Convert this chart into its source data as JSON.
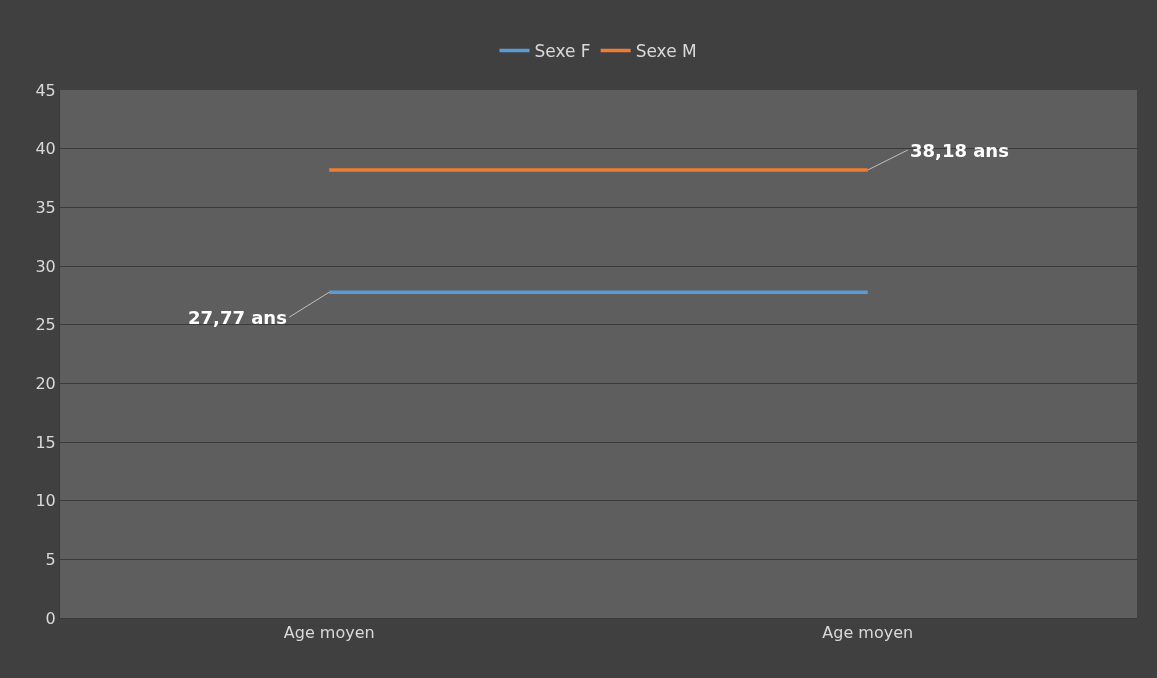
{
  "chart_data": {
    "type": "line",
    "categories": [
      "Age moyen",
      "Age moyen"
    ],
    "series": [
      {
        "name": "Sexe F",
        "color": "#5b9bd5",
        "values": [
          27.77,
          27.77
        ],
        "value_labels": [
          "27,77 ans",
          null
        ]
      },
      {
        "name": "Sexe M",
        "color": "#ed7d31",
        "values": [
          38.18,
          38.18
        ],
        "value_labels": [
          null,
          "38,18 ans"
        ]
      }
    ],
    "ylim": [
      0,
      45
    ],
    "yticks": [
      0,
      5,
      10,
      15,
      20,
      25,
      30,
      35,
      40,
      45
    ],
    "grid": "y",
    "legend": "top",
    "marker": "none",
    "line_style": "solid"
  }
}
